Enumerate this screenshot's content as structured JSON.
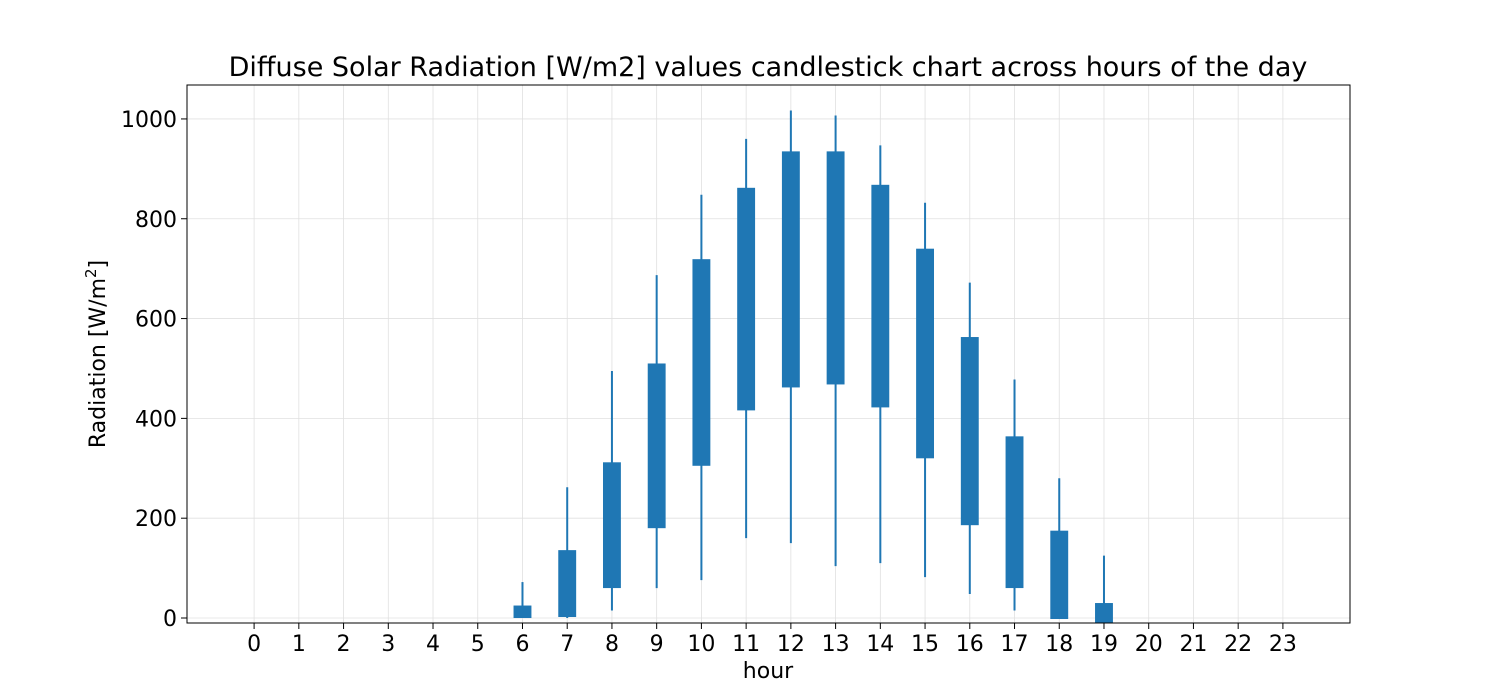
{
  "chart_data": {
    "type": "candlestick",
    "title": "Diffuse Solar Radiation [W/m2] values candlestick chart across hours of the day",
    "xlabel": "hour",
    "ylabel_main": "Radiation [W/m",
    "ylabel_sup": "2",
    "ylabel_end": "]",
    "color": "#1f77b4",
    "grid": true,
    "xlim": [
      -1.5,
      24.5
    ],
    "ylim": [
      -10,
      1068
    ],
    "xticks": [
      "0",
      "1",
      "2",
      "3",
      "4",
      "5",
      "6",
      "7",
      "8",
      "9",
      "10",
      "11",
      "12",
      "13",
      "14",
      "15",
      "16",
      "17",
      "18",
      "19",
      "20",
      "21",
      "22",
      "23"
    ],
    "yticks": [
      "0",
      "200",
      "400",
      "600",
      "800",
      "1000"
    ],
    "ytick_values": [
      0,
      200,
      400,
      600,
      800,
      1000
    ],
    "candles": [
      {
        "hour": 6,
        "low": 0,
        "box_low": 0,
        "box_high": 25,
        "high": 72
      },
      {
        "hour": 7,
        "low": 0,
        "box_low": 2,
        "box_high": 136,
        "high": 262
      },
      {
        "hour": 8,
        "low": 15,
        "box_low": 60,
        "box_high": 312,
        "high": 495
      },
      {
        "hour": 9,
        "low": 60,
        "box_low": 180,
        "box_high": 510,
        "high": 687
      },
      {
        "hour": 10,
        "low": 76,
        "box_low": 305,
        "box_high": 719,
        "high": 848
      },
      {
        "hour": 11,
        "low": 160,
        "box_low": 416,
        "box_high": 862,
        "high": 960
      },
      {
        "hour": 12,
        "low": 150,
        "box_low": 462,
        "box_high": 935,
        "high": 1017
      },
      {
        "hour": 13,
        "low": 104,
        "box_low": 468,
        "box_high": 935,
        "high": 1007
      },
      {
        "hour": 14,
        "low": 110,
        "box_low": 422,
        "box_high": 868,
        "high": 947
      },
      {
        "hour": 15,
        "low": 82,
        "box_low": 320,
        "box_high": 740,
        "high": 832
      },
      {
        "hour": 16,
        "low": 48,
        "box_low": 186,
        "box_high": 563,
        "high": 672
      },
      {
        "hour": 17,
        "low": 15,
        "box_low": 60,
        "box_high": 364,
        "high": 478
      },
      {
        "hour": 18,
        "low": 0,
        "box_low": -2,
        "box_high": 175,
        "high": 280
      },
      {
        "hour": 19,
        "low": 0,
        "box_low": -10,
        "box_high": 30,
        "high": 125
      }
    ]
  }
}
